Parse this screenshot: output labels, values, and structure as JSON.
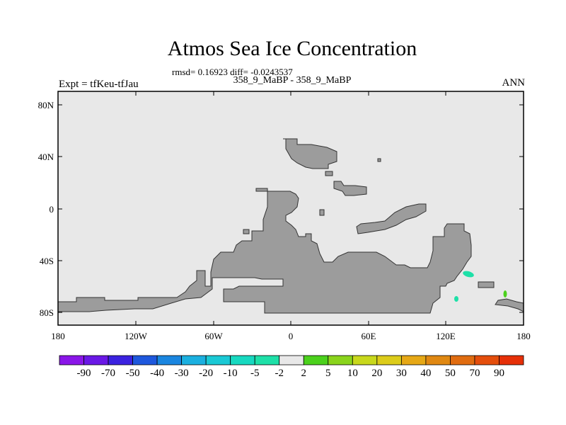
{
  "title": "Atmos Sea Ice Concentration",
  "stats": "rmsd= 0.16923 diff= -0.0243537",
  "subtitle": "358_9_MaBP - 358_9_MaBP",
  "left_label": "Expt = tfKeu-tfJau",
  "right_label": "ANN",
  "y_ticks": [
    "80N",
    "40N",
    "0",
    "40S",
    "80S"
  ],
  "x_ticks": [
    "180",
    "120W",
    "60W",
    "0",
    "60E",
    "120E",
    "180"
  ],
  "colorbar": {
    "colors": [
      "#8a16e8",
      "#6a18e6",
      "#3b22e0",
      "#1e58dd",
      "#1a86e0",
      "#1bb0e0",
      "#1ac9d5",
      "#17d9c0",
      "#1ee0a8",
      "#e8e8e8",
      "#4bd11c",
      "#8ad41c",
      "#c8d81c",
      "#dccc1a",
      "#e6a816",
      "#e08812",
      "#e06c10",
      "#e44e0c",
      "#e63008"
    ],
    "labels": [
      "-90",
      "-70",
      "-50",
      "-40",
      "-30",
      "-20",
      "-10",
      "-5",
      "-2",
      "2",
      "5",
      "10",
      "20",
      "30",
      "40",
      "50",
      "70",
      "90"
    ]
  }
}
